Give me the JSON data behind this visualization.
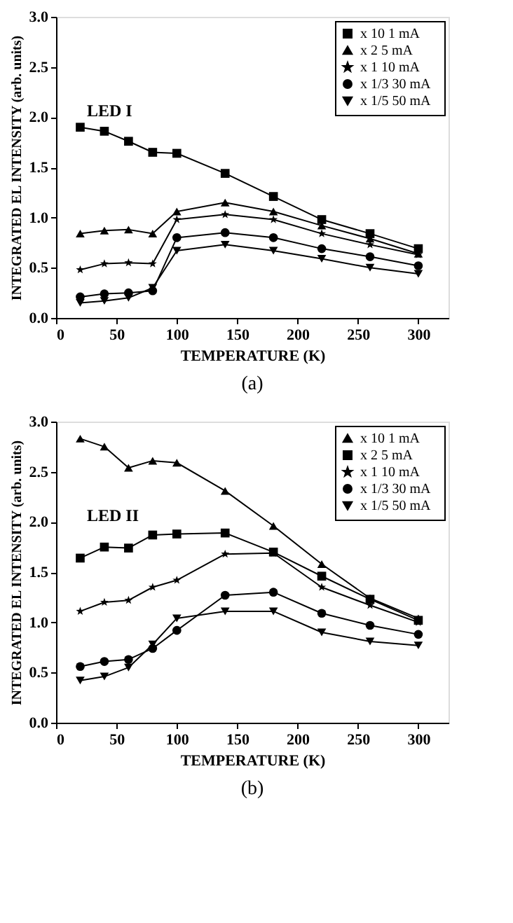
{
  "chart_data": [
    {
      "type": "line",
      "title": "(a)",
      "xlabel": "TEMPERATURE (K)",
      "ylabel": "INTEGRATED EL INTENSITY  (arb. units)",
      "annotations": [
        "LED I"
      ],
      "x": [
        20,
        40,
        60,
        80,
        100,
        140,
        180,
        220,
        260,
        300
      ],
      "series": [
        {
          "name": "x 10   1 mA",
          "color": "#000000",
          "marker": "square",
          "values": [
            1.9,
            1.86,
            1.76,
            1.65,
            1.64,
            1.44,
            1.21,
            0.98,
            0.84,
            0.69
          ]
        },
        {
          "name": "x 2   5 mA",
          "color": "#000000",
          "marker": "triangle",
          "values": [
            0.84,
            0.87,
            0.88,
            0.84,
            1.06,
            1.15,
            1.06,
            0.92,
            0.79,
            0.64
          ]
        },
        {
          "name": "x 1   10 mA",
          "color": "#000000",
          "marker": "star",
          "values": [
            0.48,
            0.54,
            0.55,
            0.54,
            0.98,
            1.03,
            0.98,
            0.84,
            0.73,
            0.63
          ]
        },
        {
          "name": "x 1/3   30 mA",
          "color": "#000000",
          "marker": "circle",
          "values": [
            0.21,
            0.24,
            0.25,
            0.27,
            0.8,
            0.85,
            0.8,
            0.69,
            0.61,
            0.52
          ]
        },
        {
          "name": "x 1/5   50 mA",
          "color": "#000000",
          "marker": "triangle-down",
          "values": [
            0.15,
            0.17,
            0.2,
            0.3,
            0.67,
            0.73,
            0.67,
            0.59,
            0.5,
            0.44
          ]
        }
      ],
      "xlim": [
        0,
        325
      ],
      "xticks": [
        0,
        50,
        100,
        150,
        200,
        250,
        300
      ],
      "ylim": [
        0,
        3
      ],
      "yticks": [
        {
          "value": 0,
          "label": "0.0"
        },
        0.5,
        {
          "value": 1,
          "label": "1.0"
        },
        1.5,
        {
          "value": 2,
          "label": "2.0"
        },
        2.5,
        {
          "value": 3,
          "label": "3.0"
        }
      ],
      "grid": false,
      "legend": "top right",
      "line_style": "solid"
    },
    {
      "type": "line",
      "title": "(b)",
      "xlabel": "TEMPERATURE (K)",
      "ylabel": "INTEGRATED EL INTENSITY  (arb. units)",
      "annotations": [
        "LED II"
      ],
      "x": [
        20,
        40,
        60,
        80,
        100,
        140,
        180,
        220,
        260,
        300
      ],
      "series": [
        {
          "name": "x 10   1 mA",
          "color": "#000000",
          "marker": "triangle",
          "values": [
            2.83,
            2.75,
            2.54,
            2.61,
            2.59,
            2.31,
            1.96,
            1.58,
            1.24,
            1.04
          ]
        },
        {
          "name": "x 2   5 mA",
          "color": "#000000",
          "marker": "square",
          "values": [
            1.64,
            1.75,
            1.74,
            1.87,
            1.88,
            1.89,
            1.7,
            1.46,
            1.23,
            1.02
          ]
        },
        {
          "name": "x 1   10 mA",
          "color": "#000000",
          "marker": "star",
          "values": [
            1.11,
            1.2,
            1.22,
            1.35,
            1.42,
            1.68,
            1.69,
            1.35,
            1.17,
            1.0
          ]
        },
        {
          "name": "x 1/3   30 mA",
          "color": "#000000",
          "marker": "circle",
          "values": [
            0.56,
            0.61,
            0.63,
            0.74,
            0.92,
            1.27,
            1.3,
            1.09,
            0.97,
            0.88
          ]
        },
        {
          "name": "x 1/5   50 mA",
          "color": "#000000",
          "marker": "triangle-down",
          "values": [
            0.42,
            0.46,
            0.55,
            0.78,
            1.04,
            1.11,
            1.11,
            0.9,
            0.81,
            0.77
          ]
        }
      ],
      "xlim": [
        0,
        325
      ],
      "xticks": [
        0,
        50,
        100,
        150,
        200,
        250,
        300
      ],
      "ylim": [
        0,
        3
      ],
      "yticks": [
        {
          "value": 0,
          "label": "0.0"
        },
        0.5,
        {
          "value": 1,
          "label": "1.0"
        },
        1.5,
        {
          "value": 2,
          "label": "2.0"
        },
        2.5,
        {
          "value": 3,
          "label": "3.0"
        }
      ],
      "grid": false,
      "legend": "top right",
      "line_style": "solid"
    }
  ]
}
